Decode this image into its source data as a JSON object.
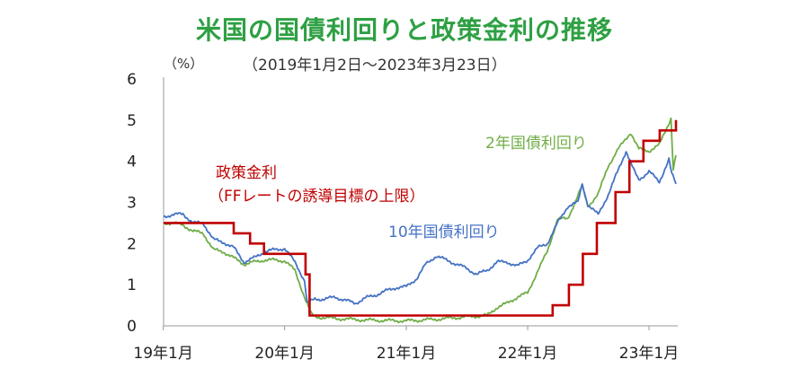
{
  "title": "米国の国債利回りと政策金利の推移",
  "unit": "（%）",
  "date_range": "（2019年1月2日～2023年3月23日）",
  "chart_data": {
    "type": "line",
    "x_start": "2019-01-02",
    "x_end": "2023-03-23",
    "ylim": [
      0,
      6
    ],
    "y_ticks": [
      "0",
      "1",
      "2",
      "3",
      "4",
      "5",
      "6"
    ],
    "x_ticks": [
      "19年1月",
      "20年1月",
      "21年1月",
      "22年1月",
      "23年1月"
    ],
    "x_tick_dates": [
      "2019-01-01",
      "2020-01-01",
      "2021-01-01",
      "2022-01-01",
      "2023-01-01"
    ],
    "grid": false,
    "series": [
      {
        "name": "政策金利（FFレートの誘導目標の上限）",
        "label_lines": [
          "政策金利",
          "（FFレートの誘導目標の上限）"
        ],
        "color": "#c00000",
        "step": true,
        "points": [
          [
            "2019-01-02",
            2.5
          ],
          [
            "2019-08-01",
            2.25
          ],
          [
            "2019-09-19",
            2.0
          ],
          [
            "2019-10-31",
            1.75
          ],
          [
            "2020-03-04",
            1.25
          ],
          [
            "2020-03-16",
            0.25
          ],
          [
            "2022-03-17",
            0.5
          ],
          [
            "2022-05-05",
            1.0
          ],
          [
            "2022-06-16",
            1.75
          ],
          [
            "2022-07-28",
            2.5
          ],
          [
            "2022-09-22",
            3.25
          ],
          [
            "2022-11-03",
            4.0
          ],
          [
            "2022-12-15",
            4.5
          ],
          [
            "2023-02-02",
            4.75
          ],
          [
            "2023-03-23",
            5.0
          ]
        ]
      },
      {
        "name": "10年国債利回り",
        "label_lines": [
          "10年国債利回り"
        ],
        "color": "#4472c4",
        "step": false,
        "points": [
          [
            "2019-01-02",
            2.66
          ],
          [
            "2019-02-01",
            2.7
          ],
          [
            "2019-03-01",
            2.72
          ],
          [
            "2019-04-01",
            2.5
          ],
          [
            "2019-05-01",
            2.5
          ],
          [
            "2019-06-01",
            2.1
          ],
          [
            "2019-07-01",
            2.03
          ],
          [
            "2019-08-01",
            1.9
          ],
          [
            "2019-09-01",
            1.55
          ],
          [
            "2019-10-01",
            1.65
          ],
          [
            "2019-11-01",
            1.8
          ],
          [
            "2019-12-01",
            1.85
          ],
          [
            "2020-01-01",
            1.88
          ],
          [
            "2020-02-01",
            1.55
          ],
          [
            "2020-03-01",
            1.1
          ],
          [
            "2020-03-09",
            0.55
          ],
          [
            "2020-04-01",
            0.65
          ],
          [
            "2020-05-01",
            0.65
          ],
          [
            "2020-06-01",
            0.7
          ],
          [
            "2020-07-01",
            0.62
          ],
          [
            "2020-08-01",
            0.55
          ],
          [
            "2020-09-01",
            0.68
          ],
          [
            "2020-10-01",
            0.75
          ],
          [
            "2020-11-01",
            0.85
          ],
          [
            "2020-12-01",
            0.93
          ],
          [
            "2021-01-01",
            0.95
          ],
          [
            "2021-02-01",
            1.15
          ],
          [
            "2021-03-01",
            1.5
          ],
          [
            "2021-04-01",
            1.7
          ],
          [
            "2021-05-01",
            1.6
          ],
          [
            "2021-06-01",
            1.5
          ],
          [
            "2021-07-01",
            1.4
          ],
          [
            "2021-08-01",
            1.25
          ],
          [
            "2021-09-01",
            1.35
          ],
          [
            "2021-10-01",
            1.55
          ],
          [
            "2021-11-01",
            1.55
          ],
          [
            "2021-12-01",
            1.45
          ],
          [
            "2022-01-01",
            1.6
          ],
          [
            "2022-02-01",
            1.9
          ],
          [
            "2022-03-01",
            2.0
          ],
          [
            "2022-04-01",
            2.5
          ],
          [
            "2022-05-01",
            2.9
          ],
          [
            "2022-06-01",
            3.0
          ],
          [
            "2022-06-14",
            3.45
          ],
          [
            "2022-07-01",
            2.95
          ],
          [
            "2022-08-01",
            2.7
          ],
          [
            "2022-09-01",
            3.2
          ],
          [
            "2022-10-01",
            3.8
          ],
          [
            "2022-10-24",
            4.25
          ],
          [
            "2022-11-15",
            3.8
          ],
          [
            "2022-12-01",
            3.55
          ],
          [
            "2023-01-01",
            3.75
          ],
          [
            "2023-02-01",
            3.5
          ],
          [
            "2023-03-02",
            4.05
          ],
          [
            "2023-03-10",
            3.7
          ],
          [
            "2023-03-23",
            3.45
          ]
        ]
      },
      {
        "name": "2年国債利回り",
        "label_lines": [
          "2年国債利回り"
        ],
        "color": "#70ad47",
        "step": false,
        "points": [
          [
            "2019-01-02",
            2.5
          ],
          [
            "2019-02-01",
            2.5
          ],
          [
            "2019-03-01",
            2.45
          ],
          [
            "2019-04-01",
            2.3
          ],
          [
            "2019-05-01",
            2.25
          ],
          [
            "2019-06-01",
            1.85
          ],
          [
            "2019-07-01",
            1.8
          ],
          [
            "2019-08-01",
            1.65
          ],
          [
            "2019-09-01",
            1.5
          ],
          [
            "2019-10-01",
            1.55
          ],
          [
            "2019-11-01",
            1.6
          ],
          [
            "2019-12-01",
            1.6
          ],
          [
            "2020-01-01",
            1.58
          ],
          [
            "2020-02-01",
            1.35
          ],
          [
            "2020-03-01",
            0.7
          ],
          [
            "2020-03-20",
            0.3
          ],
          [
            "2020-04-01",
            0.22
          ],
          [
            "2020-06-01",
            0.18
          ],
          [
            "2020-09-01",
            0.14
          ],
          [
            "2021-01-01",
            0.12
          ],
          [
            "2021-04-01",
            0.16
          ],
          [
            "2021-07-01",
            0.22
          ],
          [
            "2021-09-01",
            0.25
          ],
          [
            "2021-10-01",
            0.45
          ],
          [
            "2021-11-01",
            0.55
          ],
          [
            "2021-12-01",
            0.7
          ],
          [
            "2022-01-01",
            0.8
          ],
          [
            "2022-02-01",
            1.35
          ],
          [
            "2022-03-01",
            1.8
          ],
          [
            "2022-04-01",
            2.6
          ],
          [
            "2022-05-01",
            2.6
          ],
          [
            "2022-06-14",
            3.4
          ],
          [
            "2022-07-01",
            2.9
          ],
          [
            "2022-08-01",
            3.2
          ],
          [
            "2022-09-01",
            3.9
          ],
          [
            "2022-10-01",
            4.3
          ],
          [
            "2022-11-07",
            4.7
          ],
          [
            "2022-12-01",
            4.3
          ],
          [
            "2023-01-01",
            4.25
          ],
          [
            "2023-02-01",
            4.4
          ],
          [
            "2023-03-08",
            5.05
          ],
          [
            "2023-03-15",
            3.8
          ],
          [
            "2023-03-23",
            4.15
          ]
        ]
      }
    ]
  }
}
